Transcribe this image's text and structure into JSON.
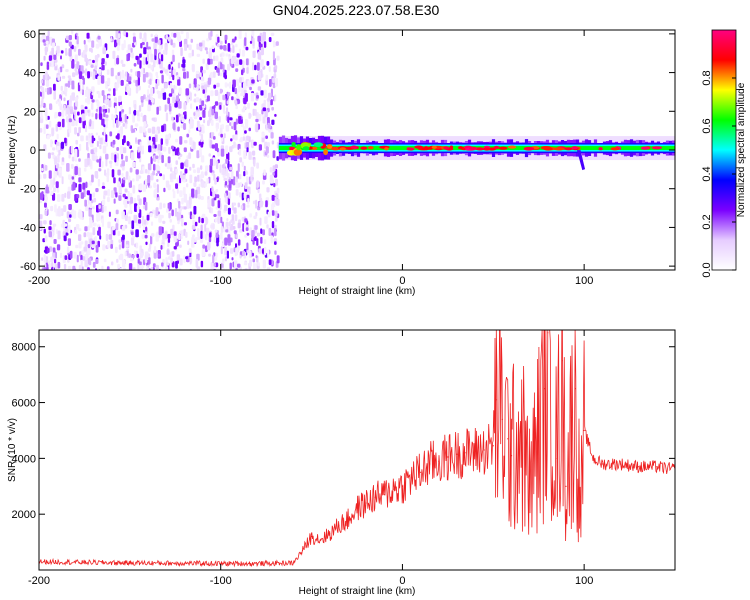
{
  "title": "GN04.2025.223.07.58.E30",
  "chart_data": [
    {
      "type": "heatmap",
      "xlabel": "Height of straight line (km)",
      "ylabel": "Frequency (Hz)",
      "xlim": [
        -200,
        150
      ],
      "ylim": [
        -62,
        62
      ],
      "x_ticks": [
        -200,
        -100,
        0,
        100
      ],
      "y_ticks": [
        60,
        40,
        20,
        0,
        -20,
        -40,
        -60
      ],
      "colorbar": {
        "label": "Normalized spectral amplitude",
        "range": [
          0,
          1
        ],
        "ticks": [
          0.0,
          0.2,
          0.4,
          0.6,
          0.8
        ],
        "colors": [
          "#ffffff",
          "#e6ccff",
          "#7a00ff",
          "#0000ff",
          "#00ffff",
          "#00ff00",
          "#ffff00",
          "#ff0000",
          "#ff0080"
        ]
      },
      "features": [
        {
          "x_range": [
            -200,
            -68
          ],
          "freq_range": [
            -62,
            62
          ],
          "amplitude": "low (0.05-0.25), broadband noise"
        },
        {
          "x_range": [
            -68,
            150
          ],
          "center_freq_hz": 1,
          "amplitude": "high (0.6-1.0), narrow band near 0 Hz"
        }
      ]
    },
    {
      "type": "line",
      "xlabel": "Height of straight line (km)",
      "ylabel": "SNR (10 * v/v)",
      "xlim": [
        -200,
        150
      ],
      "ylim": [
        0,
        8600
      ],
      "x_ticks": [
        -200,
        -100,
        0,
        100
      ],
      "y_ticks": [
        2000,
        4000,
        6000,
        8000
      ],
      "color": "#ee2222",
      "series": [
        {
          "x": [
            -200,
            -180,
            -160,
            -140,
            -120,
            -100,
            -80,
            -70,
            -60,
            -55,
            -50,
            -45,
            -40,
            -35,
            -30,
            -25,
            -20,
            -15,
            -10,
            -5,
            0,
            5,
            10,
            15,
            20,
            25,
            30,
            35,
            40,
            45,
            50,
            52,
            55,
            58,
            60,
            65,
            70,
            75,
            78,
            80,
            85,
            88,
            90,
            95,
            98,
            100,
            105,
            110,
            120,
            130,
            140,
            150
          ],
          "values": [
            300,
            280,
            260,
            250,
            240,
            230,
            230,
            240,
            250,
            700,
            1200,
            1100,
            1300,
            1600,
            1800,
            2200,
            2400,
            2600,
            2700,
            2900,
            3000,
            3300,
            3500,
            3800,
            3900,
            4050,
            4150,
            4200,
            4250,
            4300,
            4450,
            6100,
            5400,
            4700,
            4100,
            5000,
            3000,
            4800,
            6500,
            8500,
            4000,
            7500,
            3000,
            6500,
            2000,
            5000,
            4000,
            3800,
            3800,
            3700,
            3700,
            3600
          ]
        }
      ]
    }
  ]
}
